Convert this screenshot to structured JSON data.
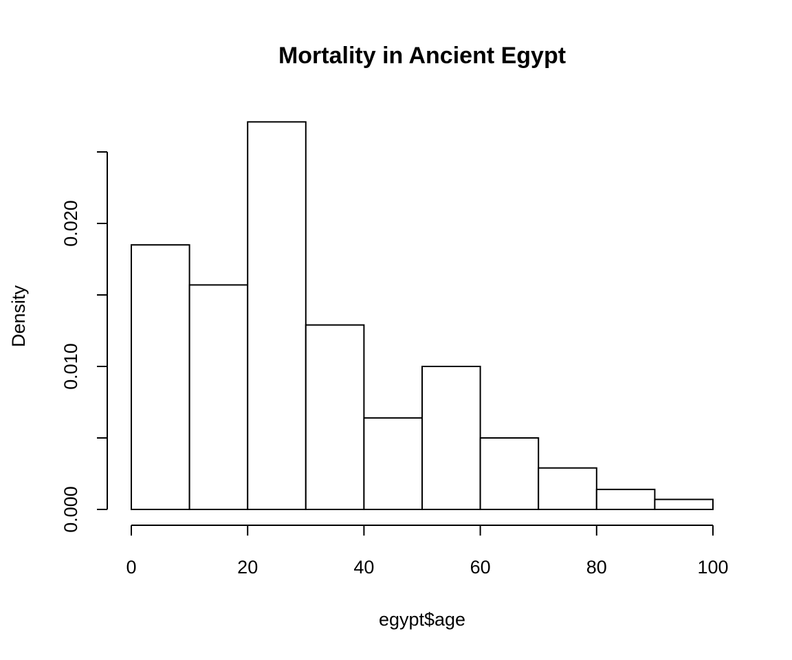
{
  "chart_data": {
    "type": "bar",
    "title": "Mortality in Ancient Egypt",
    "xlabel": "egypt$age",
    "ylabel": "Density",
    "bins": [
      {
        "from": 0,
        "to": 10,
        "value": 0.0185
      },
      {
        "from": 10,
        "to": 20,
        "value": 0.0157
      },
      {
        "from": 20,
        "to": 30,
        "value": 0.0271
      },
      {
        "from": 30,
        "to": 40,
        "value": 0.0129
      },
      {
        "from": 40,
        "to": 50,
        "value": 0.0064
      },
      {
        "from": 50,
        "to": 60,
        "value": 0.01
      },
      {
        "from": 60,
        "to": 70,
        "value": 0.005
      },
      {
        "from": 70,
        "to": 80,
        "value": 0.0029
      },
      {
        "from": 80,
        "to": 90,
        "value": 0.0014
      },
      {
        "from": 90,
        "to": 100,
        "value": 0.0007
      }
    ],
    "xlim": [
      0,
      100
    ],
    "ylim": [
      0,
      0.025
    ],
    "x_ticks": [
      0,
      20,
      40,
      60,
      80,
      100
    ],
    "x_tick_labels": [
      "0",
      "20",
      "40",
      "60",
      "80",
      "100"
    ],
    "y_ticks": [
      0,
      0.005,
      0.01,
      0.015,
      0.02,
      0.025
    ],
    "y_tick_labels": [
      "0.000",
      "",
      "0.010",
      "",
      "0.020",
      ""
    ],
    "grid": false,
    "legend": "none"
  }
}
